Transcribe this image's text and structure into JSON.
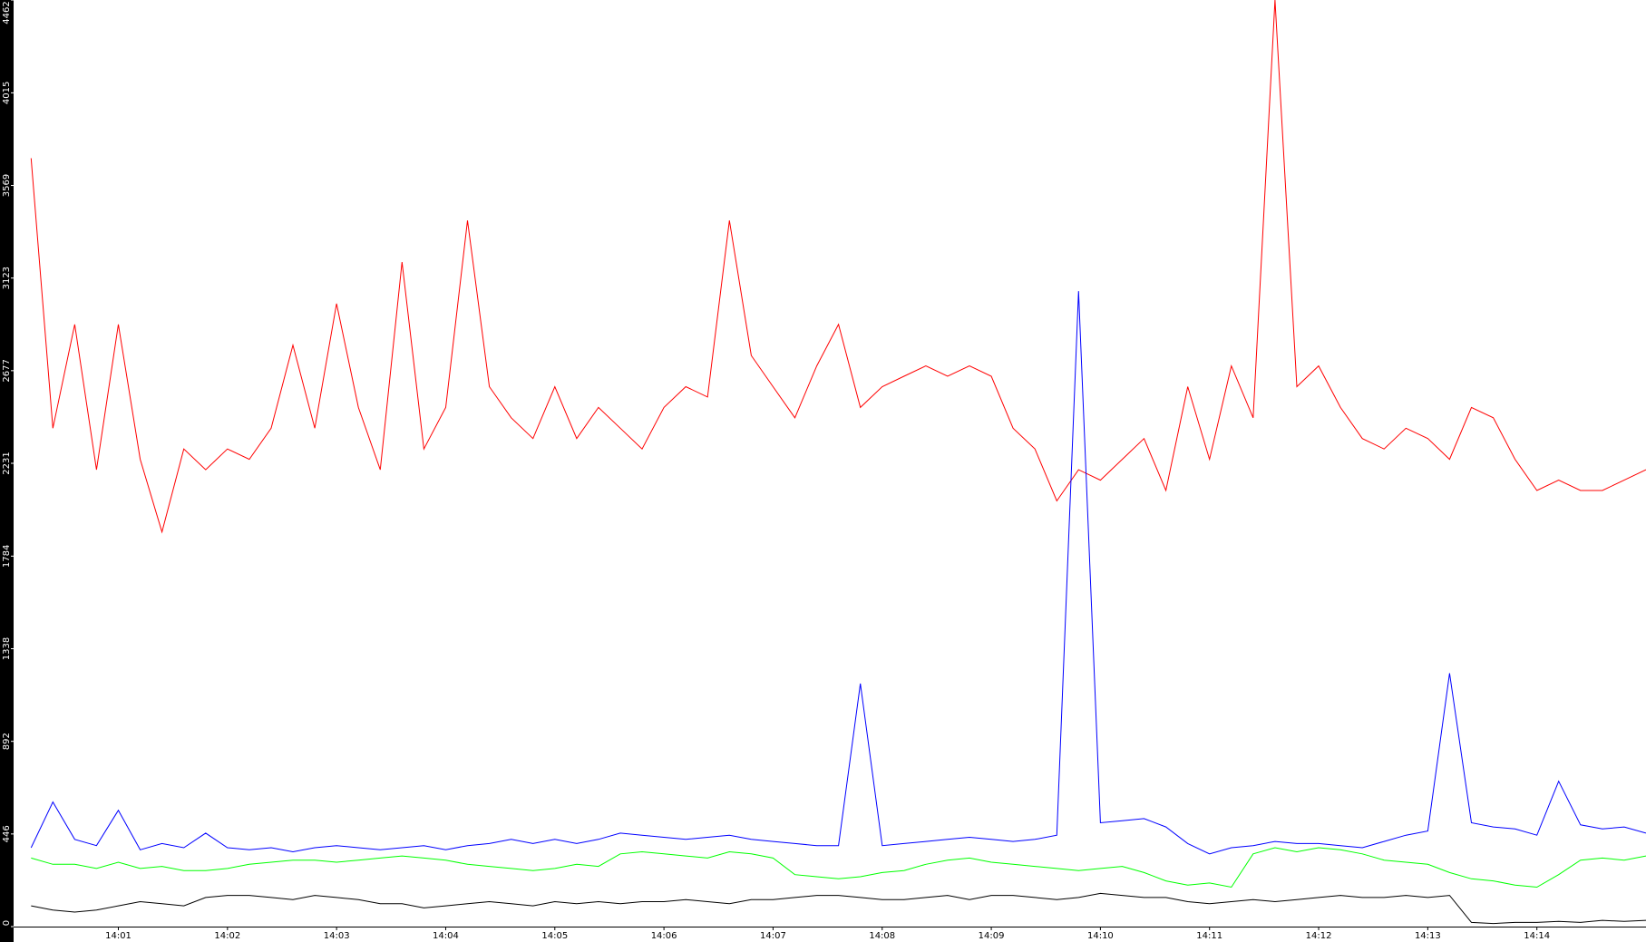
{
  "chart_data": {
    "type": "line",
    "x": [
      0.2,
      0.4,
      0.6,
      0.8,
      1.0,
      1.2,
      1.4,
      1.6,
      1.8,
      2.0,
      2.2,
      2.4,
      2.6,
      2.8,
      3.0,
      3.2,
      3.4,
      3.6,
      3.8,
      4.0,
      4.2,
      4.4,
      4.6,
      4.8,
      5.0,
      5.2,
      5.4,
      5.6,
      5.8,
      6.0,
      6.2,
      6.4,
      6.6,
      6.8,
      7.0,
      7.2,
      7.4,
      7.6,
      7.8,
      8.0,
      8.2,
      8.4,
      8.6,
      8.8,
      9.0,
      9.2,
      9.4,
      9.6,
      9.8,
      10.0,
      10.2,
      10.4,
      10.6,
      10.8,
      11.0,
      11.2,
      11.4,
      11.6,
      11.8,
      12.0,
      12.2,
      12.4,
      12.6,
      12.8,
      13.0,
      13.2,
      13.4,
      13.6,
      13.8,
      14.0,
      14.2,
      14.4,
      14.6,
      14.8,
      15.0
    ],
    "series": [
      {
        "color": "#ff0000",
        "values": [
          3700,
          2400,
          2900,
          2200,
          2900,
          2250,
          1900,
          2300,
          2200,
          2300,
          2250,
          2400,
          2800,
          2400,
          3000,
          2500,
          2200,
          3200,
          2300,
          2500,
          3400,
          2600,
          2450,
          2350,
          2600,
          2350,
          2500,
          2400,
          2300,
          2500,
          2600,
          2550,
          3400,
          2750,
          2600,
          2450,
          2700,
          2900,
          2500,
          2600,
          2650,
          2700,
          2650,
          2700,
          2650,
          2400,
          2300,
          2050,
          2200,
          2150,
          2250,
          2350,
          2100,
          2600,
          2250,
          2700,
          2450,
          4462,
          2600,
          2700,
          2500,
          2350,
          2300,
          2400,
          2350,
          2250,
          2500,
          2450,
          2250,
          2100,
          2150,
          2100,
          2100,
          2150,
          2200
        ]
      },
      {
        "color": "#0000ff",
        "values": [
          380,
          600,
          420,
          390,
          560,
          370,
          400,
          380,
          450,
          380,
          370,
          380,
          360,
          380,
          390,
          380,
          370,
          380,
          390,
          370,
          390,
          400,
          420,
          400,
          420,
          400,
          420,
          450,
          440,
          430,
          420,
          430,
          440,
          420,
          410,
          400,
          390,
          390,
          1170,
          390,
          400,
          410,
          420,
          430,
          420,
          410,
          420,
          440,
          3060,
          500,
          510,
          520,
          480,
          400,
          350,
          380,
          390,
          410,
          400,
          400,
          390,
          380,
          410,
          440,
          460,
          1220,
          500,
          480,
          470,
          440,
          700,
          490,
          470,
          480,
          450
        ]
      },
      {
        "color": "#00ff00",
        "values": [
          330,
          300,
          300,
          280,
          310,
          280,
          290,
          270,
          270,
          280,
          300,
          310,
          320,
          320,
          310,
          320,
          330,
          340,
          330,
          320,
          300,
          290,
          280,
          270,
          280,
          300,
          290,
          350,
          360,
          350,
          340,
          330,
          360,
          350,
          330,
          250,
          240,
          230,
          240,
          260,
          270,
          300,
          320,
          330,
          310,
          300,
          290,
          280,
          270,
          280,
          290,
          260,
          220,
          200,
          210,
          190,
          350,
          380,
          360,
          380,
          370,
          350,
          320,
          310,
          300,
          260,
          230,
          220,
          200,
          190,
          250,
          320,
          330,
          320,
          340
        ]
      },
      {
        "color": "#000000",
        "values": [
          100,
          80,
          70,
          80,
          100,
          120,
          110,
          100,
          140,
          150,
          150,
          140,
          130,
          150,
          140,
          130,
          110,
          110,
          90,
          100,
          110,
          120,
          110,
          100,
          120,
          110,
          120,
          110,
          120,
          120,
          130,
          120,
          110,
          130,
          130,
          140,
          150,
          150,
          140,
          130,
          130,
          140,
          150,
          130,
          150,
          150,
          140,
          130,
          140,
          160,
          150,
          140,
          140,
          120,
          110,
          120,
          130,
          120,
          130,
          140,
          150,
          140,
          140,
          150,
          140,
          150,
          20,
          15,
          20,
          20,
          25,
          20,
          30,
          25,
          30
        ]
      }
    ],
    "xlim": [
      0.04,
      15
    ],
    "xticks": [
      {
        "value": 1,
        "label": "14:01"
      },
      {
        "value": 2,
        "label": "14:02"
      },
      {
        "value": 3,
        "label": "14:03"
      },
      {
        "value": 4,
        "label": "14:04"
      },
      {
        "value": 5,
        "label": "14:05"
      },
      {
        "value": 6,
        "label": "14:06"
      },
      {
        "value": 7,
        "label": "14:07"
      },
      {
        "value": 8,
        "label": "14:08"
      },
      {
        "value": 9,
        "label": "14:09"
      },
      {
        "value": 10,
        "label": "14:10"
      },
      {
        "value": 11,
        "label": "14:11"
      },
      {
        "value": 12,
        "label": "14:12"
      },
      {
        "value": 13,
        "label": "14:13"
      },
      {
        "value": 14,
        "label": "14:14"
      }
    ],
    "ylim": [
      0,
      4462
    ],
    "yticks": [
      0,
      446,
      892,
      1338,
      1784,
      2231,
      2677,
      3123,
      3569,
      4015,
      4462
    ]
  }
}
